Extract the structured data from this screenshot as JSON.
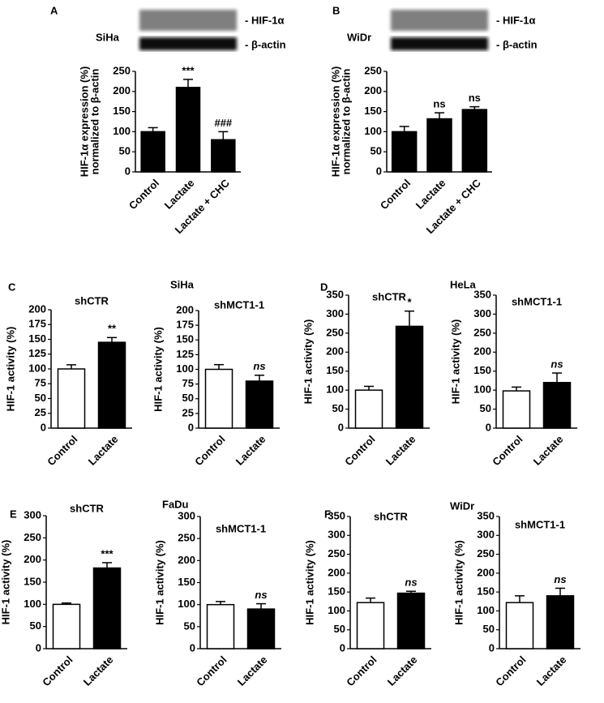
{
  "chart_data": [
    {
      "type": "bar",
      "panel": "A",
      "blot": {
        "cell_line": "SiHa",
        "bands": [
          "- HIF-1α",
          "- β-actin"
        ]
      },
      "ylabel": "HIF-1α expression (%)",
      "ylabel2": "normalized to β-actin",
      "categories": [
        "Control",
        "Lactate",
        "Lactate + CHC"
      ],
      "values": [
        100,
        210,
        80
      ],
      "errors": [
        10,
        20,
        20
      ],
      "colors": [
        "#000000",
        "#000000",
        "#000000"
      ],
      "annotations": [
        null,
        "***",
        "###"
      ],
      "annotation_italic": false,
      "ylim": [
        0,
        250
      ],
      "yticks": [
        0,
        50,
        100,
        150,
        200,
        250
      ]
    },
    {
      "type": "bar",
      "panel": "B",
      "blot": {
        "cell_line": "WiDr",
        "bands": [
          "- HIF-1α",
          "- β-actin"
        ]
      },
      "ylabel": "HIF-1α expression (%)",
      "ylabel2": "normalized to β-actin",
      "categories": [
        "Control",
        "Lactate",
        "Lactate + CHC"
      ],
      "values": [
        100,
        132,
        155
      ],
      "errors": [
        13,
        15,
        7
      ],
      "colors": [
        "#000000",
        "#000000",
        "#000000"
      ],
      "annotations": [
        null,
        "ns",
        "ns"
      ],
      "annotation_italic": false,
      "ylim": [
        0,
        250
      ],
      "yticks": [
        0,
        50,
        100,
        150,
        200,
        250
      ]
    },
    {
      "type": "bar",
      "panel": "C",
      "group": "SiHa",
      "title": "shCTR",
      "ylabel": "HIF-1 activity (%)",
      "categories": [
        "Control",
        "Lactate"
      ],
      "values": [
        100,
        145
      ],
      "errors": [
        7,
        8
      ],
      "colors": [
        "#ffffff",
        "#000000"
      ],
      "annotations": [
        null,
        "**"
      ],
      "annotation_italic": false,
      "ylim": [
        0,
        200
      ],
      "yticks": [
        0,
        25,
        50,
        75,
        100,
        125,
        150,
        175,
        200
      ]
    },
    {
      "type": "bar",
      "title": "shMCT1-1",
      "ylabel": "HIF-1 activity (%)",
      "categories": [
        "Control",
        "Lactate"
      ],
      "values": [
        100,
        80
      ],
      "errors": [
        8,
        10
      ],
      "colors": [
        "#ffffff",
        "#000000"
      ],
      "annotations": [
        null,
        "ns"
      ],
      "annotation_italic": true,
      "ylim": [
        0,
        200
      ],
      "yticks": [
        0,
        25,
        50,
        75,
        100,
        125,
        150,
        175,
        200
      ]
    },
    {
      "type": "bar",
      "panel": "D",
      "group": "HeLa",
      "title": "shCTR",
      "ylabel": "HIF-1 activity (%)",
      "categories": [
        "Control",
        "Lactate"
      ],
      "values": [
        100,
        268
      ],
      "errors": [
        10,
        40
      ],
      "colors": [
        "#ffffff",
        "#000000"
      ],
      "annotations": [
        null,
        "*"
      ],
      "annotation_italic": false,
      "ylim": [
        0,
        350
      ],
      "yticks": [
        0,
        50,
        100,
        150,
        200,
        250,
        300,
        350
      ]
    },
    {
      "type": "bar",
      "title": "shMCT1-1",
      "ylabel": "HIF-1 activity (%)",
      "categories": [
        "Control",
        "Lactate"
      ],
      "values": [
        98,
        120
      ],
      "errors": [
        10,
        25
      ],
      "colors": [
        "#ffffff",
        "#000000"
      ],
      "annotations": [
        null,
        "ns"
      ],
      "annotation_italic": true,
      "ylim": [
        0,
        350
      ],
      "yticks": [
        0,
        50,
        100,
        150,
        200,
        250,
        300,
        350
      ]
    },
    {
      "type": "bar",
      "panel": "E",
      "group": "FaDu",
      "title": "shCTR",
      "ylabel": "HIF-1 activity (%)",
      "categories": [
        "Control",
        "Lactate"
      ],
      "values": [
        100,
        182
      ],
      "errors": [
        3,
        12
      ],
      "colors": [
        "#ffffff",
        "#000000"
      ],
      "annotations": [
        null,
        "***"
      ],
      "annotation_italic": false,
      "ylim": [
        0,
        300
      ],
      "yticks": [
        0,
        50,
        100,
        150,
        200,
        250,
        300
      ]
    },
    {
      "type": "bar",
      "title": "shMCT1-1",
      "ylabel": "HIF-1 activity (%)",
      "categories": [
        "Control",
        "Lactate"
      ],
      "values": [
        100,
        90
      ],
      "errors": [
        7,
        12
      ],
      "colors": [
        "#ffffff",
        "#000000"
      ],
      "annotations": [
        null,
        "ns"
      ],
      "annotation_italic": true,
      "ylim": [
        0,
        300
      ],
      "yticks": [
        0,
        50,
        100,
        150,
        200,
        250,
        300
      ]
    },
    {
      "type": "bar",
      "panel": "F",
      "group": "WiDr",
      "title": "shCTR",
      "ylabel": "HIF-1 activity (%)",
      "categories": [
        "Control",
        "Lactate"
      ],
      "values": [
        122,
        147
      ],
      "errors": [
        12,
        5
      ],
      "colors": [
        "#ffffff",
        "#000000"
      ],
      "annotations": [
        null,
        "ns"
      ],
      "annotation_italic": true,
      "ylim": [
        0,
        350
      ],
      "yticks": [
        0,
        50,
        100,
        150,
        200,
        250,
        300,
        350
      ]
    },
    {
      "type": "bar",
      "title": "shMCT1-1",
      "ylabel": "HIF-1 activity (%)",
      "categories": [
        "Control",
        "Lactate"
      ],
      "values": [
        122,
        140
      ],
      "errors": [
        18,
        20
      ],
      "colors": [
        "#ffffff",
        "#000000"
      ],
      "annotations": [
        null,
        "ns"
      ],
      "annotation_italic": true,
      "ylim": [
        0,
        350
      ],
      "yticks": [
        0,
        50,
        100,
        150,
        200,
        250,
        300,
        350
      ]
    }
  ]
}
